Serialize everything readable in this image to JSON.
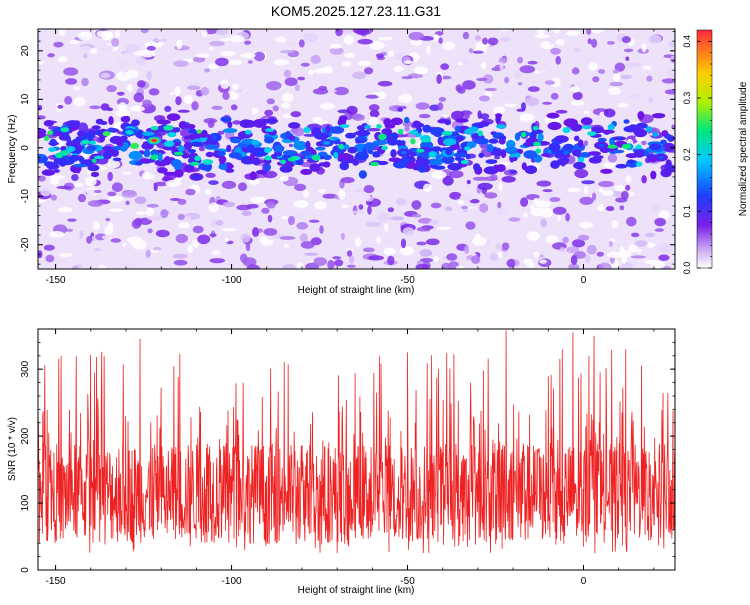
{
  "figure": {
    "title": "KOM5.2025.127.23.11.G31"
  },
  "colors": {
    "snr_line": "#ee2222",
    "axis": "#000000",
    "background": "#ffffff",
    "colormap": [
      "#ffffff",
      "#7a1fe6",
      "#1e3cff",
      "#00c8ff",
      "#00e878",
      "#b4f000",
      "#ffcc00",
      "#ff2a3c"
    ]
  },
  "chart_data": [
    {
      "type": "heatmap",
      "title": "",
      "xlabel": "Height of straight line (km)",
      "ylabel": "Frequency (Hz)",
      "xlim": [
        -155,
        26
      ],
      "ylim": [
        -25,
        24.5
      ],
      "xticks": [
        -150,
        -100,
        -50,
        0
      ],
      "yticks": [
        -20,
        -10,
        0,
        10,
        20
      ],
      "colorbar": {
        "label": "Normalized spectral amplitude",
        "range": [
          0.0,
          0.42
        ],
        "ticks": [
          0.0,
          0.1,
          0.2,
          0.3,
          0.4
        ]
      },
      "description_of_values": "Purple noise background everywhere; concentrated band of higher amplitude between about -5 and +7 Hz around 0 Hz, peak amplitude ~0.42 near x=-122 km, y=1.5 Hz",
      "band": {
        "center_hz": 0.5,
        "half_width_hz": 6
      },
      "peaks": [
        {
          "x": -122,
          "y": 1.5,
          "value": 0.42
        },
        {
          "x": -129,
          "y": 3.2,
          "value": 0.3
        },
        {
          "x": -73,
          "y": 1.0,
          "value": 0.25
        },
        {
          "x": -51,
          "y": -1.0,
          "value": 0.22
        },
        {
          "x": -110,
          "y": -6.0,
          "value": 0.18
        },
        {
          "x": 5,
          "y": 0.5,
          "value": 0.2
        },
        {
          "x": 22,
          "y": -2.0,
          "value": 0.2
        }
      ]
    },
    {
      "type": "line",
      "title": "",
      "xlabel": "Height of straight line (km)",
      "ylabel": "SNR (10 * v/v)",
      "xlim": [
        -155,
        26
      ],
      "ylim": [
        0,
        360
      ],
      "xticks": [
        -150,
        -100,
        -50,
        0
      ],
      "yticks": [
        0,
        100,
        200,
        300
      ],
      "series": [
        {
          "color": "#ee2222",
          "statistics": {
            "typical_min": 20,
            "typical_mean": 115,
            "typical_max": 360
          },
          "notable_peaks": [
            {
              "x": -126,
              "y": 345
            },
            {
              "x": -22,
              "y": 358
            },
            {
              "x": -3,
              "y": 355
            },
            {
              "x": 3,
              "y": 350
            },
            {
              "x": -50,
              "y": 325
            },
            {
              "x": 12,
              "y": 330
            },
            {
              "x": -58,
              "y": 320
            }
          ]
        }
      ]
    }
  ]
}
